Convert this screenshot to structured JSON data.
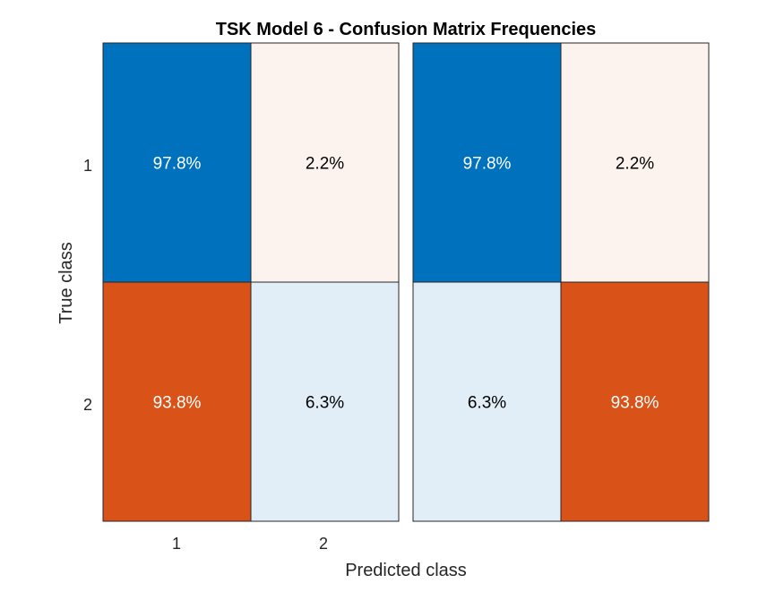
{
  "chart_data": {
    "type": "heatmap",
    "title": "TSK Model 6 - Confusion Matrix Frequencies",
    "xlabel": "Predicted class",
    "ylabel": "True class",
    "x_tick_labels": [
      "1",
      "2"
    ],
    "y_tick_labels": [
      "1",
      "2"
    ],
    "panels": [
      {
        "cells": [
          [
            {
              "label": "97.8%",
              "value": 97.8,
              "kind": "correct"
            },
            {
              "label": "2.2%",
              "value": 2.2,
              "kind": "incorrect"
            }
          ],
          [
            {
              "label": "93.8%",
              "value": 93.8,
              "kind": "incorrect"
            },
            {
              "label": "6.3%",
              "value": 6.3,
              "kind": "correct"
            }
          ]
        ]
      },
      {
        "cells": [
          [
            {
              "label": "97.8%",
              "value": 97.8,
              "kind": "correct"
            },
            {
              "label": "2.2%",
              "value": 2.2,
              "kind": "incorrect"
            }
          ],
          [
            {
              "label": "6.3%",
              "value": 6.3,
              "kind": "correct"
            },
            {
              "label": "93.8%",
              "value": 93.8,
              "kind": "incorrect"
            }
          ]
        ]
      }
    ],
    "colors": {
      "correct": "#0072bd",
      "incorrect": "#d95319",
      "light_correct": "#e1eef7",
      "light_incorrect": "#fcf2ee",
      "text_dark": "#000000",
      "text_light": "#ffffff"
    }
  }
}
